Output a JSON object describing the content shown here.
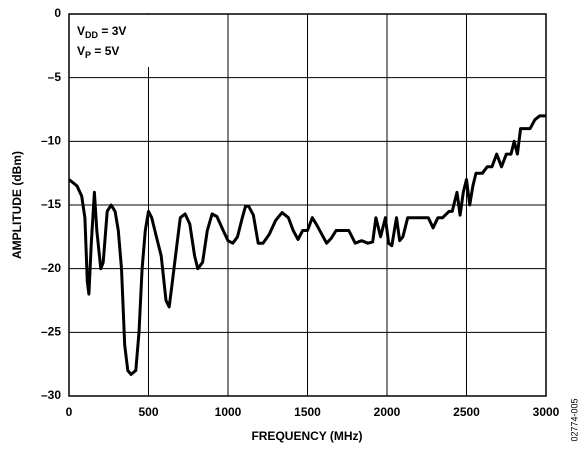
{
  "chart_data": {
    "type": "line",
    "xlabel": "FREQUENCY (MHz)",
    "ylabel": "AMPLITUDE (dBm)",
    "annotations": [
      {
        "main": "V",
        "sub": "DD",
        "suffix": " = 3V"
      },
      {
        "main": "V",
        "sub": "P",
        "suffix": " = 5V"
      }
    ],
    "side_label": "02774-005",
    "xlim": [
      0,
      3000
    ],
    "xticks": [
      0,
      500,
      1000,
      1500,
      2000,
      2500,
      3000
    ],
    "ylim": [
      -30,
      0
    ],
    "yticks": [
      {
        "value": -30,
        "label": "–30"
      },
      {
        "value": -25,
        "label": "–25"
      },
      {
        "value": -20,
        "label": "–20"
      },
      {
        "value": -15,
        "label": "–15"
      },
      {
        "value": -10,
        "label": "–10"
      },
      {
        "value": -5,
        "label": "–5"
      },
      0
    ],
    "grid": true,
    "series": [
      {
        "color": "#000000",
        "x": [
          0,
          50,
          80,
          100,
          115,
          125,
          140,
          160,
          175,
          200,
          215,
          240,
          265,
          290,
          310,
          330,
          350,
          370,
          390,
          420,
          440,
          460,
          480,
          500,
          520,
          550,
          580,
          610,
          630,
          650,
          680,
          700,
          730,
          760,
          790,
          810,
          840,
          870,
          900,
          930,
          970,
          1000,
          1030,
          1060,
          1090,
          1110,
          1130,
          1160,
          1190,
          1220,
          1260,
          1300,
          1340,
          1380,
          1410,
          1440,
          1470,
          1500,
          1530,
          1560,
          1590,
          1620,
          1650,
          1680,
          1720,
          1760,
          1800,
          1840,
          1880,
          1910,
          1930,
          1960,
          1990,
          2010,
          2030,
          2060,
          2080,
          2100,
          2130,
          2180,
          2230,
          2260,
          2290,
          2320,
          2350,
          2390,
          2410,
          2440,
          2460,
          2480,
          2500,
          2520,
          2540,
          2560,
          2600,
          2630,
          2660,
          2690,
          2720,
          2750,
          2780,
          2800,
          2820,
          2840,
          2870,
          2900,
          2930,
          2960,
          3000
        ],
        "values": [
          -13,
          -13.5,
          -14.3,
          -16,
          -21,
          -22,
          -18,
          -14,
          -17,
          -20,
          -19.5,
          -15.5,
          -15,
          -15.5,
          -17,
          -20,
          -26,
          -28,
          -28.3,
          -28,
          -25,
          -20,
          -17,
          -15.5,
          -16,
          -17.5,
          -19,
          -22.5,
          -23,
          -21,
          -18,
          -16,
          -15.7,
          -16.5,
          -19,
          -20,
          -19.5,
          -17,
          -15.7,
          -15.9,
          -17,
          -17.8,
          -18,
          -17.5,
          -16,
          -15.1,
          -15.1,
          -15.8,
          -18,
          -18,
          -17.3,
          -16.2,
          -15.6,
          -16,
          -17,
          -17.7,
          -17,
          -17,
          -16,
          -16.6,
          -17.3,
          -18,
          -17.6,
          -17,
          -17,
          -17,
          -18,
          -17.8,
          -18,
          -17.9,
          -16,
          -17.5,
          -16,
          -18,
          -18.2,
          -16,
          -17.8,
          -17.5,
          -16,
          -16,
          -16,
          -16,
          -16.8,
          -16,
          -16,
          -15.5,
          -15.5,
          -14,
          -15.8,
          -14,
          -13,
          -15,
          -13.5,
          -12.5,
          -12.5,
          -12,
          -12,
          -11,
          -12,
          -11,
          -11,
          -10,
          -11,
          -9,
          -9,
          -9,
          -8.3,
          -8,
          -8
        ]
      }
    ]
  }
}
